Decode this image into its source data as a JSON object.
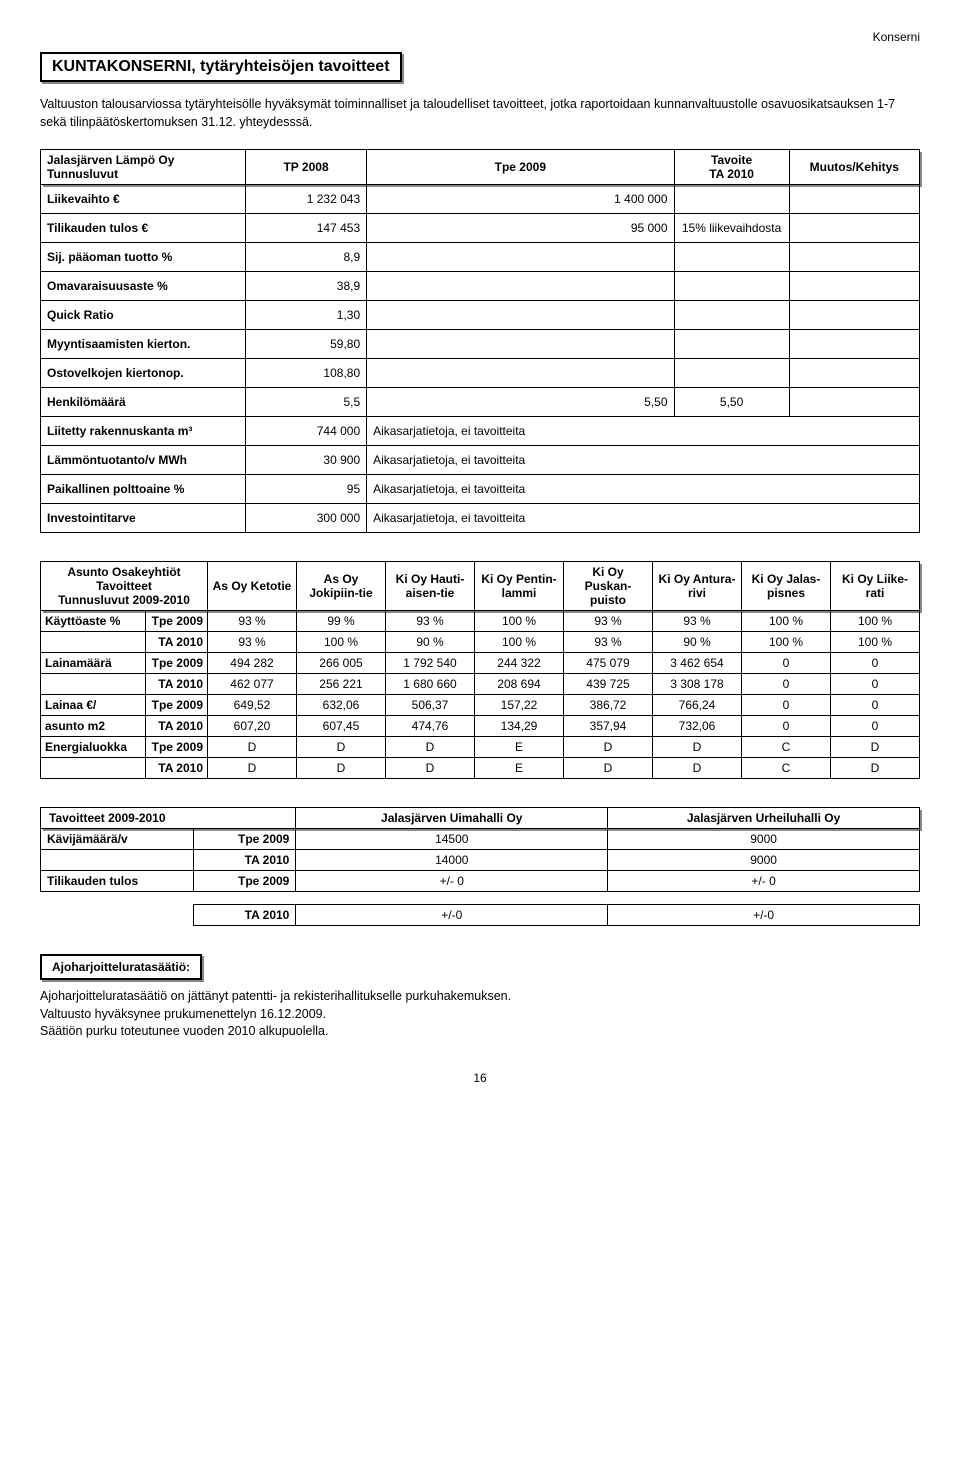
{
  "top_label": "Konserni",
  "main_title": "KUNTAKONSERNI, tytäryhteisöjen tavoitteet",
  "intro": "Valtuuston talousarviossa tytäryhteisölle hyväksymät toiminnalliset ja taloudelliset tavoitteet, jotka raportoidaan kunnanvaltuustolle osavuosikatsauksen 1-7 sekä tilinpäätöskertomuksen 31.12. yhteydesssä.",
  "lampo": {
    "head_left": "Jalasjärven Lämpö Oy\nTunnusluvut",
    "head_tp": "TP 2008",
    "head_tpe": "Tpe 2009",
    "head_tav": "Tavoite\nTA 2010",
    "head_mk": "Muutos/Kehitys",
    "rows": [
      {
        "label": "Liikevaihto €",
        "c1": "1 232 043",
        "c2": "1 400 000",
        "c3": "",
        "c4": ""
      },
      {
        "label": "Tilikauden tulos €",
        "c1": "147 453",
        "c2": "95 000",
        "c3": "15% liikevaihdosta",
        "c4": ""
      },
      {
        "label": "Sij. pääoman tuotto %",
        "c1": "8,9",
        "c2": "",
        "c3": "",
        "c4": ""
      },
      {
        "label": "Omavaraisuusaste %",
        "c1": "38,9",
        "c2": "",
        "c3": "",
        "c4": ""
      },
      {
        "label": "Quick Ratio",
        "c1": "1,30",
        "c2": "",
        "c3": "",
        "c4": ""
      },
      {
        "label": "Myyntisaamisten kierton.",
        "c1": "59,80",
        "c2": "",
        "c3": "",
        "c4": ""
      },
      {
        "label": "Ostovelkojen kiertonop.",
        "c1": "108,80",
        "c2": "",
        "c3": "",
        "c4": ""
      },
      {
        "label": "Henkilömäärä",
        "c1": "5,5",
        "c2": "5,50",
        "c3": "5,50",
        "c4": ""
      },
      {
        "label": "Liitetty rakennuskanta m³",
        "c1": "744 000",
        "c2": "Aikasarjatietoja, ei tavoitteita",
        "c3": "",
        "c4": ""
      },
      {
        "label": "Lämmöntuotanto/v MWh",
        "c1": "30 900",
        "c2": "Aikasarjatietoja, ei tavoitteita",
        "c3": "",
        "c4": ""
      },
      {
        "label": "Paikallinen polttoaine %",
        "c1": "95",
        "c2": "Aikasarjatietoja, ei tavoitteita",
        "c3": "",
        "c4": ""
      },
      {
        "label": "Investointitarve",
        "c1": "300 000",
        "c2": "Aikasarjatietoja, ei tavoitteita",
        "c3": "",
        "c4": ""
      }
    ]
  },
  "asunto": {
    "head_left": "Asunto Osakeyhtiöt\nTavoitteet\nTunnusluvut 2009-2010",
    "cols": [
      "As Oy Ketotie",
      "As Oy Jokipiin-tie",
      "Ki Oy Hauti-aisen-tie",
      "Ki Oy Pentin-lammi",
      "Ki Oy Puskan-puisto",
      "Ki Oy Antura-rivi",
      "Ki Oy Jalas-pisnes",
      "Ki Oy Liike-rati"
    ],
    "rows": [
      {
        "label": "Käyttöaste %",
        "sub": "Tpe 2009",
        "v": [
          "93 %",
          "99 %",
          "93 %",
          "100 %",
          "93 %",
          "93 %",
          "100 %",
          "100 %"
        ]
      },
      {
        "label": "",
        "sub": "TA 2010",
        "v": [
          "93 %",
          "100 %",
          "90 %",
          "100 %",
          "93 %",
          "90 %",
          "100 %",
          "100 %"
        ]
      },
      {
        "label": "Lainamäärä",
        "sub": "Tpe 2009",
        "v": [
          "494 282",
          "266 005",
          "1 792 540",
          "244 322",
          "475 079",
          "3 462 654",
          "0",
          "0"
        ]
      },
      {
        "label": "",
        "sub": "TA 2010",
        "v": [
          "462 077",
          "256 221",
          "1 680 660",
          "208 694",
          "439 725",
          "3 308 178",
          "0",
          "0"
        ]
      },
      {
        "label": "Lainaa €/",
        "sub": "Tpe 2009",
        "v": [
          "649,52",
          "632,06",
          "506,37",
          "157,22",
          "386,72",
          "766,24",
          "0",
          "0"
        ]
      },
      {
        "label": "asunto m2",
        "sub": "TA 2010",
        "v": [
          "607,20",
          "607,45",
          "474,76",
          "134,29",
          "357,94",
          "732,06",
          "0",
          "0"
        ]
      },
      {
        "label": "Energialuokka",
        "sub": "Tpe 2009",
        "v": [
          "D",
          "D",
          "D",
          "E",
          "D",
          "D",
          "C",
          "D"
        ]
      },
      {
        "label": "",
        "sub": "TA 2010",
        "v": [
          "D",
          "D",
          "D",
          "E",
          "D",
          "D",
          "C",
          "D"
        ]
      }
    ]
  },
  "tav": {
    "head_left": "Tavoitteet 2009-2010",
    "c1": "Jalasjärven Uimahalli Oy",
    "c2": "Jalasjärven Urheiluhalli Oy",
    "rows": [
      {
        "label": "Kävijämäärä/v",
        "sub": "Tpe 2009",
        "v1": "14500",
        "v2": "9000"
      },
      {
        "label": "",
        "sub": "TA 2010",
        "v1": "14000",
        "v2": "9000"
      },
      {
        "label": "Tilikauden tulos",
        "sub": "Tpe 2009",
        "v1": "+/- 0",
        "v2": "+/- 0"
      }
    ],
    "footrow": {
      "sub": "TA 2010",
      "v1": "+/-0",
      "v2": "+/-0"
    }
  },
  "ajo": {
    "title": "Ajoharjoitteluratasäätiö:",
    "p1": "Ajoharjoitteluratasäätiö on jättänyt patentti- ja rekisterihallitukselle purkuhakemuksen.",
    "p2": "Valtuusto hyväksynee prukumenettelyn 16.12.2009.",
    "p3": "Säätiön purku toteutunee vuoden 2010 alkupuolella."
  },
  "page_num": "16"
}
